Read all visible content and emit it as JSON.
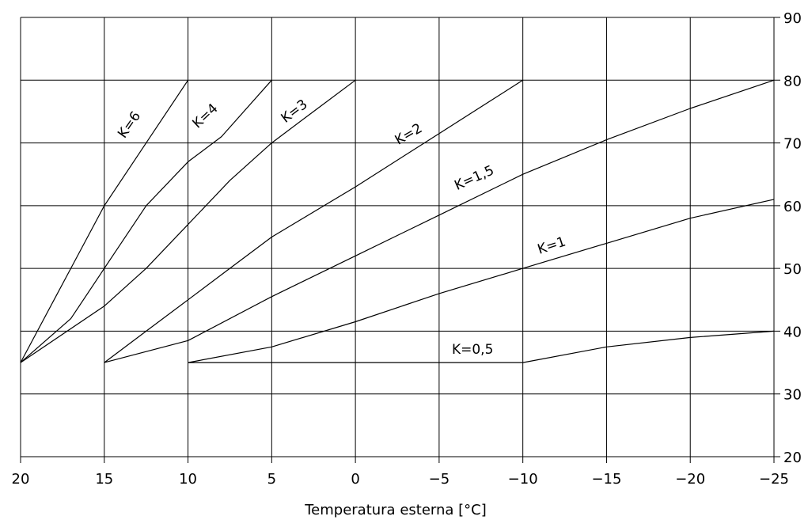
{
  "chart_data": {
    "type": "line",
    "title": "",
    "xlabel": "Temperatura esterna [°C]",
    "ylabel": "",
    "xlim": [
      20,
      -25
    ],
    "ylim": [
      20,
      90
    ],
    "x_ticks": [
      20,
      15,
      10,
      5,
      0,
      -5,
      -10,
      -15,
      -20,
      -25
    ],
    "x_tick_labels": [
      "20",
      "15",
      "10",
      "5",
      "0",
      "−5",
      "−10",
      "−15",
      "−20",
      "−25"
    ],
    "y_ticks": [
      20,
      30,
      40,
      50,
      60,
      70,
      80,
      90
    ],
    "y_tick_labels": [
      "20",
      "30",
      "40",
      "50",
      "60",
      "70",
      "80",
      "90"
    ],
    "grid": true,
    "y_axis_side": "right",
    "series": [
      {
        "name": "K=6",
        "points": [
          [
            20,
            35
          ],
          [
            18,
            45
          ],
          [
            17,
            50
          ],
          [
            15,
            60
          ],
          [
            12.5,
            70
          ],
          [
            10,
            80
          ]
        ]
      },
      {
        "name": "K=4",
        "points": [
          [
            20,
            35
          ],
          [
            17,
            42
          ],
          [
            15,
            50
          ],
          [
            12.5,
            60
          ],
          [
            10,
            67
          ],
          [
            8,
            71
          ],
          [
            5,
            80
          ]
        ]
      },
      {
        "name": "K=3",
        "points": [
          [
            20,
            35
          ],
          [
            15,
            44
          ],
          [
            12.5,
            50
          ],
          [
            10,
            57
          ],
          [
            7.5,
            64
          ],
          [
            5,
            70
          ],
          [
            2.5,
            75
          ],
          [
            0,
            80
          ]
        ]
      },
      {
        "name": "K=2",
        "points": [
          [
            15,
            35
          ],
          [
            12.5,
            40
          ],
          [
            10,
            45
          ],
          [
            7.5,
            50
          ],
          [
            5,
            55
          ],
          [
            0,
            63
          ],
          [
            -5,
            71.5
          ],
          [
            -10,
            80
          ]
        ]
      },
      {
        "name": "K=1,5",
        "points": [
          [
            15,
            35
          ],
          [
            10,
            38.5
          ],
          [
            5,
            45.5
          ],
          [
            0,
            52
          ],
          [
            -5,
            58.5
          ],
          [
            -10,
            65
          ],
          [
            -15,
            70.5
          ],
          [
            -20,
            75.5
          ],
          [
            -25,
            80
          ]
        ]
      },
      {
        "name": "K=1",
        "points": [
          [
            10,
            35
          ],
          [
            5,
            37.5
          ],
          [
            0,
            41.5
          ],
          [
            -5,
            46
          ],
          [
            -10,
            50
          ],
          [
            -15,
            54
          ],
          [
            -20,
            58
          ],
          [
            -25,
            61
          ]
        ]
      },
      {
        "name": "K=0,5",
        "points": [
          [
            10,
            35
          ],
          [
            -10,
            35
          ],
          [
            -15,
            37.5
          ],
          [
            -20,
            39
          ],
          [
            -25,
            40
          ]
        ]
      }
    ]
  }
}
